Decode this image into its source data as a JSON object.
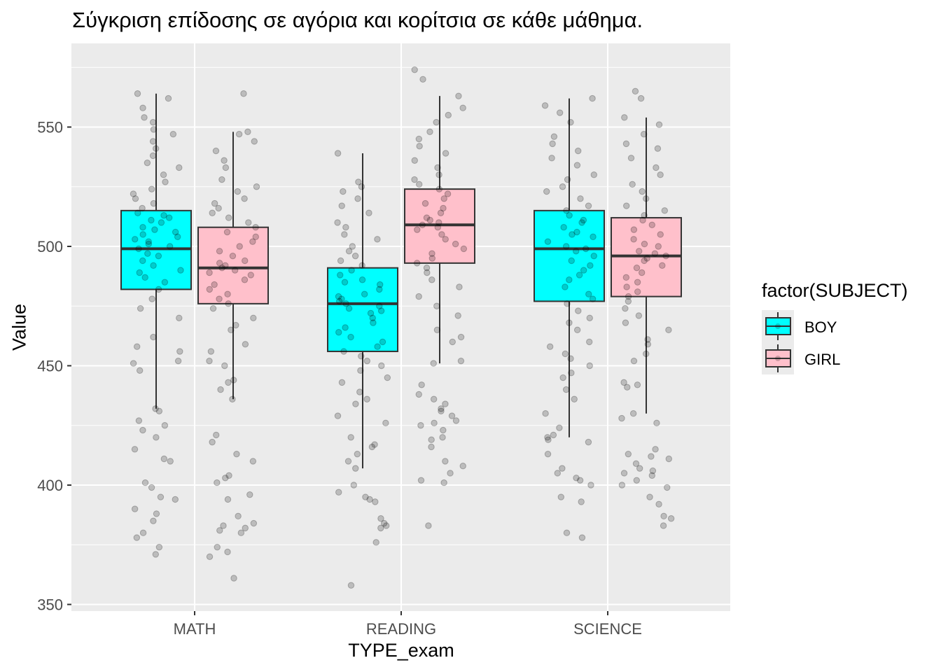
{
  "chart_data": {
    "type": "boxplot",
    "title": "Σύγκριση επίδοσης σε αγόρια και κορίτσια σε κάθε μάθημα.",
    "xlabel": "TYPE_exam",
    "ylabel": "Value",
    "categories": [
      "MATH",
      "READING",
      "SCIENCE"
    ],
    "ylim": [
      347,
      578
    ],
    "yticks": [
      350,
      400,
      450,
      500,
      550
    ],
    "grid": true,
    "legend": {
      "title": "factor(SUBJECT)",
      "position": "right",
      "entries": [
        "BOY",
        "GIRL"
      ]
    },
    "colors": {
      "BOY": "#00FFFF",
      "GIRL": "#FFC0CB",
      "panel": "#EBEBEB",
      "box_stroke": "#333333"
    },
    "series": [
      {
        "name": "BOY",
        "boxes": [
          {
            "category": "MATH",
            "whisker_low": 432,
            "q1": 482,
            "median": 499,
            "q3": 515,
            "whisker_high": 564
          },
          {
            "category": "READING",
            "whisker_low": 407,
            "q1": 456,
            "median": 476,
            "q3": 491,
            "whisker_high": 539
          },
          {
            "category": "SCIENCE",
            "whisker_low": 420,
            "q1": 477,
            "median": 499,
            "q3": 515,
            "whisker_high": 562
          }
        ],
        "points": [
          [
            371,
            374,
            378,
            380,
            385,
            388,
            390,
            394,
            395,
            399,
            401,
            410,
            411,
            415,
            420,
            423,
            425,
            427,
            431,
            432,
            448,
            451,
            452,
            456,
            458,
            462,
            470,
            474,
            478,
            482,
            485,
            487,
            489,
            490,
            492,
            494,
            496,
            497,
            499,
            500,
            501,
            502,
            503,
            504,
            505,
            506,
            507,
            508,
            510,
            511,
            512,
            513,
            514,
            516,
            518,
            520,
            522,
            524,
            527,
            530,
            533,
            535,
            538,
            541,
            544,
            547,
            549,
            552,
            554,
            558,
            562,
            564
          ],
          [
            358,
            376,
            382,
            383,
            384,
            386,
            393,
            394,
            395,
            397,
            400,
            407,
            410,
            413,
            416,
            417,
            420,
            426,
            429,
            434,
            436,
            439,
            443,
            445,
            448,
            450,
            452,
            454,
            456,
            458,
            460,
            462,
            464,
            466,
            468,
            470,
            472,
            473,
            474,
            475,
            476,
            477,
            478,
            479,
            480,
            482,
            484,
            485,
            486,
            488,
            490,
            492,
            494,
            496,
            498,
            500,
            503,
            505,
            508,
            510,
            514,
            517,
            520,
            523,
            525,
            527,
            539
          ],
          [
            378,
            380,
            393,
            395,
            400,
            402,
            403,
            405,
            407,
            413,
            418,
            419,
            420,
            421,
            424,
            430,
            436,
            440,
            445,
            447,
            450,
            453,
            455,
            458,
            460,
            465,
            468,
            470,
            473,
            476,
            478,
            480,
            483,
            486,
            488,
            490,
            492,
            494,
            496,
            498,
            499,
            500,
            502,
            504,
            505,
            506,
            508,
            510,
            511,
            513,
            515,
            517,
            520,
            523,
            525,
            528,
            530,
            534,
            537,
            540,
            543,
            546,
            552,
            556,
            559,
            562
          ]
        ]
      },
      {
        "name": "GIRL",
        "boxes": [
          {
            "category": "MATH",
            "whisker_low": 436,
            "q1": 476,
            "median": 491,
            "q3": 508,
            "whisker_high": 548
          },
          {
            "category": "READING",
            "whisker_low": 451,
            "q1": 493,
            "median": 509,
            "q3": 524,
            "whisker_high": 563
          },
          {
            "category": "SCIENCE",
            "whisker_low": 430,
            "q1": 479,
            "median": 496,
            "q3": 512,
            "whisker_high": 554
          }
        ],
        "points": [
          [
            361,
            370,
            372,
            374,
            380,
            381,
            382,
            383,
            384,
            387,
            394,
            396,
            401,
            403,
            404,
            410,
            413,
            418,
            421,
            436,
            440,
            443,
            444,
            450,
            452,
            456,
            459,
            465,
            467,
            470,
            474,
            476,
            478,
            480,
            482,
            484,
            486,
            488,
            489,
            490,
            491,
            492,
            493,
            494,
            496,
            498,
            500,
            502,
            504,
            506,
            508,
            510,
            512,
            514,
            516,
            518,
            520,
            523,
            525,
            528,
            533,
            536,
            540,
            544,
            547,
            548,
            564
          ],
          [
            383,
            401,
            402,
            405,
            408,
            410,
            416,
            419,
            420,
            423,
            425,
            426,
            427,
            429,
            431,
            432,
            434,
            436,
            438,
            442,
            451,
            452,
            460,
            462,
            465,
            471,
            475,
            479,
            483,
            486,
            489,
            491,
            493,
            495,
            497,
            499,
            501,
            503,
            505,
            507,
            508,
            509,
            510,
            511,
            512,
            514,
            516,
            518,
            520,
            522,
            524,
            526,
            528,
            530,
            533,
            536,
            539,
            542,
            545,
            548,
            552,
            555,
            558,
            563,
            570,
            574
          ],
          [
            383,
            386,
            387,
            392,
            395,
            399,
            400,
            402,
            404,
            405,
            406,
            407,
            409,
            411,
            412,
            413,
            415,
            426,
            428,
            430,
            441,
            442,
            443,
            452,
            455,
            459,
            461,
            465,
            468,
            471,
            474,
            477,
            479,
            481,
            483,
            485,
            487,
            489,
            491,
            492,
            494,
            495,
            496,
            497,
            498,
            500,
            501,
            503,
            505,
            507,
            509,
            511,
            513,
            515,
            517,
            520,
            523,
            526,
            530,
            533,
            537,
            541,
            543,
            547,
            551,
            554,
            562,
            565
          ]
        ]
      }
    ]
  }
}
